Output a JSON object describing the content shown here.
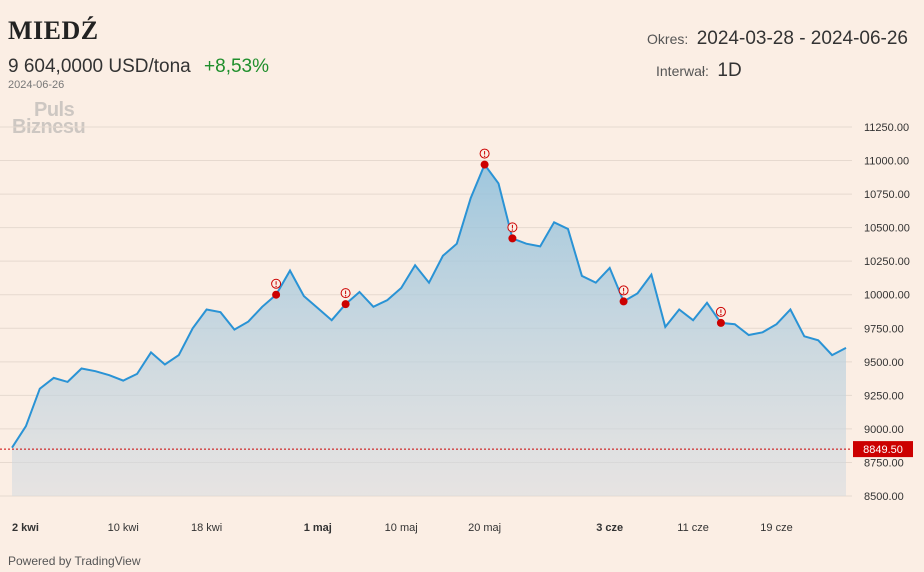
{
  "header": {
    "title": "MIEDŹ",
    "price": "9 604,0000 USD/tona",
    "change": "+8,53%",
    "date": "2024-06-26",
    "logo_line1": "Puls",
    "logo_line2": "Biznesu"
  },
  "period": {
    "label": "Okres:",
    "value": "2024-03-28 - 2024-06-26"
  },
  "interval": {
    "label": "Interwał:",
    "value": "1D"
  },
  "footer": {
    "powered": "Powered by TradingView"
  },
  "colors": {
    "line": "#2a93d5",
    "marker": "#cc0000",
    "reference_label_bg": "#cc0000",
    "change_positive": "#1f8f2c"
  },
  "chart_data": {
    "type": "area",
    "ylim": [
      8500,
      11250
    ],
    "y_ticks": [
      "11250.00",
      "11000.00",
      "10750.00",
      "10500.00",
      "10250.00",
      "10000.00",
      "9750.00",
      "9500.00",
      "9250.00",
      "9000.00",
      "8750.00",
      "8500.00"
    ],
    "x_ticks": [
      {
        "label": "2 kwi",
        "index": 0,
        "bold": true
      },
      {
        "label": "10 kwi",
        "index": 8,
        "bold": false
      },
      {
        "label": "18 kwi",
        "index": 14,
        "bold": false
      },
      {
        "label": "1 maj",
        "index": 22,
        "bold": true
      },
      {
        "label": "10 maj",
        "index": 28,
        "bold": false
      },
      {
        "label": "20 maj",
        "index": 34,
        "bold": false
      },
      {
        "label": "3 cze",
        "index": 43,
        "bold": true
      },
      {
        "label": "11 cze",
        "index": 49,
        "bold": false
      },
      {
        "label": "19 cze",
        "index": 55,
        "bold": false
      }
    ],
    "values": [
      8860,
      9020,
      9300,
      9380,
      9350,
      9450,
      9430,
      9400,
      9360,
      9410,
      9570,
      9480,
      9550,
      9750,
      9890,
      9870,
      9740,
      9800,
      9910,
      10000,
      10180,
      9990,
      9900,
      9810,
      9930,
      10020,
      9910,
      9960,
      10050,
      10220,
      10090,
      10290,
      10380,
      10720,
      10970,
      10830,
      10420,
      10380,
      10360,
      10540,
      10490,
      10140,
      10090,
      10200,
      9950,
      10010,
      10150,
      9760,
      9890,
      9810,
      9940,
      9790,
      9780,
      9700,
      9720,
      9780,
      9890,
      9690,
      9660,
      9550,
      9604
    ],
    "event_markers": [
      19,
      24,
      34,
      36,
      44,
      51
    ],
    "reference_line": {
      "value": 8849.5,
      "label": "8849.50"
    }
  }
}
